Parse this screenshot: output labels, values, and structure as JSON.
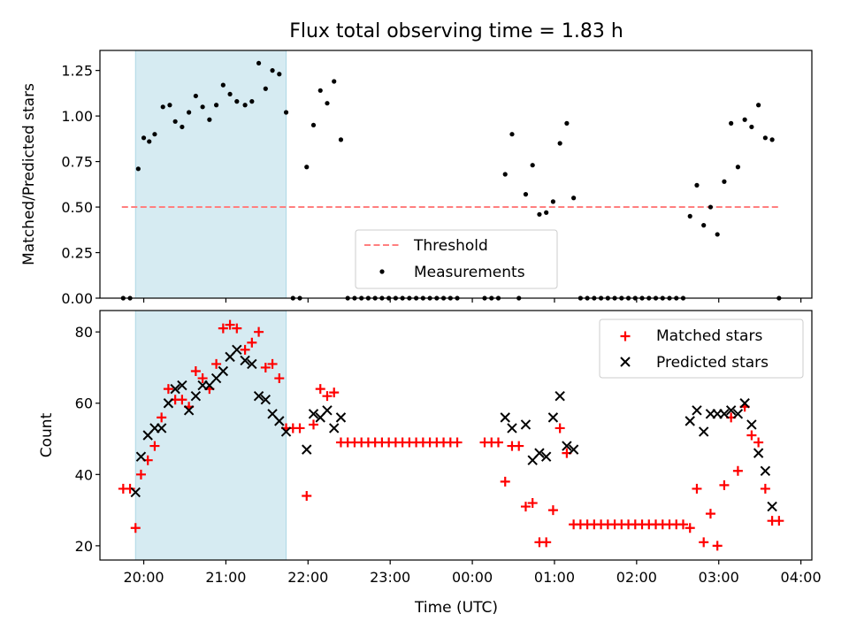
{
  "figure": {
    "title": "Flux total observing time = 1.83 h",
    "xlabel": "Time (UTC)",
    "x_ticks": [
      "20:00",
      "21:00",
      "22:00",
      "23:00",
      "00:00",
      "01:00",
      "02:00",
      "03:00",
      "04:00"
    ],
    "shaded_span": {
      "start": "19:54",
      "end": "21:44",
      "color": "#add8e6"
    }
  },
  "chart_data": [
    {
      "type": "scatter",
      "panel": "top",
      "title": "Flux total observing time = 1.83 h",
      "ylabel": "Matched/Predicted stars",
      "xlim": [
        "19:28",
        "04:08"
      ],
      "ylim": [
        0,
        1.36
      ],
      "y_ticks": [
        "0.00",
        "0.25",
        "0.50",
        "0.75",
        "1.00",
        "1.25"
      ],
      "legend_position": "lower-center",
      "series": [
        {
          "name": "Threshold",
          "style": "dashed-line",
          "color": "#ff7f7f",
          "points": [
            [
              "19:44",
              0.5
            ],
            [
              "03:44",
              0.5
            ]
          ]
        },
        {
          "name": "Measurements",
          "style": "dot",
          "color": "#000000",
          "points": [
            [
              "19:45",
              0
            ],
            [
              "19:50",
              0
            ],
            [
              "19:56",
              0.71
            ],
            [
              "20:00",
              0.88
            ],
            [
              "20:04",
              0.86
            ],
            [
              "20:08",
              0.9
            ],
            [
              "20:14",
              1.05
            ],
            [
              "20:19",
              1.06
            ],
            [
              "20:23",
              0.97
            ],
            [
              "20:28",
              0.94
            ],
            [
              "20:33",
              1.02
            ],
            [
              "20:38",
              1.11
            ],
            [
              "20:43",
              1.05
            ],
            [
              "20:48",
              0.98
            ],
            [
              "20:53",
              1.06
            ],
            [
              "20:58",
              1.17
            ],
            [
              "21:03",
              1.12
            ],
            [
              "21:08",
              1.08
            ],
            [
              "21:14",
              1.06
            ],
            [
              "21:19",
              1.08
            ],
            [
              "21:24",
              1.29
            ],
            [
              "21:29",
              1.15
            ],
            [
              "21:34",
              1.25
            ],
            [
              "21:39",
              1.23
            ],
            [
              "21:44",
              1.02
            ],
            [
              "21:49",
              0
            ],
            [
              "21:54",
              0
            ],
            [
              "21:59",
              0.72
            ],
            [
              "22:04",
              0.95
            ],
            [
              "22:09",
              1.14
            ],
            [
              "22:14",
              1.07
            ],
            [
              "22:19",
              1.19
            ],
            [
              "22:24",
              0.87
            ],
            [
              "22:29",
              0
            ],
            [
              "22:34",
              0
            ],
            [
              "22:39",
              0
            ],
            [
              "22:44",
              0
            ],
            [
              "22:49",
              0
            ],
            [
              "22:54",
              0
            ],
            [
              "22:59",
              0
            ],
            [
              "23:04",
              0
            ],
            [
              "23:09",
              0
            ],
            [
              "23:14",
              0
            ],
            [
              "23:19",
              0
            ],
            [
              "23:24",
              0
            ],
            [
              "23:29",
              0
            ],
            [
              "23:34",
              0
            ],
            [
              "23:39",
              0
            ],
            [
              "23:44",
              0
            ],
            [
              "23:49",
              0
            ],
            [
              "00:09",
              0
            ],
            [
              "00:14",
              0
            ],
            [
              "00:19",
              0
            ],
            [
              "00:24",
              0.68
            ],
            [
              "00:29",
              0.9
            ],
            [
              "00:34",
              0
            ],
            [
              "00:39",
              0.57
            ],
            [
              "00:44",
              0.73
            ],
            [
              "00:49",
              0.46
            ],
            [
              "00:54",
              0.47
            ],
            [
              "00:59",
              0.53
            ],
            [
              "01:04",
              0.85
            ],
            [
              "01:09",
              0.96
            ],
            [
              "01:14",
              0.55
            ],
            [
              "01:19",
              0
            ],
            [
              "01:24",
              0
            ],
            [
              "01:29",
              0
            ],
            [
              "01:34",
              0
            ],
            [
              "01:39",
              0
            ],
            [
              "01:44",
              0
            ],
            [
              "01:49",
              0
            ],
            [
              "01:54",
              0
            ],
            [
              "01:59",
              0
            ],
            [
              "02:04",
              0
            ],
            [
              "02:09",
              0
            ],
            [
              "02:14",
              0
            ],
            [
              "02:19",
              0
            ],
            [
              "02:24",
              0
            ],
            [
              "02:29",
              0
            ],
            [
              "02:34",
              0
            ],
            [
              "02:39",
              0.45
            ],
            [
              "02:44",
              0.62
            ],
            [
              "02:49",
              0.4
            ],
            [
              "02:54",
              0.5
            ],
            [
              "02:59",
              0.35
            ],
            [
              "03:04",
              0.64
            ],
            [
              "03:09",
              0.96
            ],
            [
              "03:14",
              0.72
            ],
            [
              "03:19",
              0.98
            ],
            [
              "03:24",
              0.94
            ],
            [
              "03:29",
              1.06
            ],
            [
              "03:34",
              0.88
            ],
            [
              "03:39",
              0.87
            ],
            [
              "03:44",
              0
            ]
          ]
        }
      ]
    },
    {
      "type": "scatter",
      "panel": "bottom",
      "ylabel": "Count",
      "xlabel": "Time (UTC)",
      "xlim": [
        "19:28",
        "04:08"
      ],
      "ylim": [
        16,
        86
      ],
      "y_ticks": [
        "20",
        "40",
        "60",
        "80"
      ],
      "legend_position": "upper-right",
      "series": [
        {
          "name": "Matched stars",
          "marker": "+",
          "color": "#ff0000",
          "points": [
            [
              "19:45",
              36
            ],
            [
              "19:50",
              36
            ],
            [
              "19:54",
              25
            ],
            [
              "19:58",
              40
            ],
            [
              "20:03",
              44
            ],
            [
              "20:08",
              48
            ],
            [
              "20:13",
              56
            ],
            [
              "20:18",
              64
            ],
            [
              "20:23",
              61
            ],
            [
              "20:28",
              61
            ],
            [
              "20:33",
              59
            ],
            [
              "20:38",
              69
            ],
            [
              "20:43",
              67
            ],
            [
              "20:48",
              64
            ],
            [
              "20:53",
              71
            ],
            [
              "20:58",
              81
            ],
            [
              "21:03",
              82
            ],
            [
              "21:08",
              81
            ],
            [
              "21:14",
              75
            ],
            [
              "21:19",
              77
            ],
            [
              "21:24",
              80
            ],
            [
              "21:29",
              70
            ],
            [
              "21:34",
              71
            ],
            [
              "21:39",
              67
            ],
            [
              "21:44",
              53
            ],
            [
              "21:49",
              53
            ],
            [
              "21:54",
              53
            ],
            [
              "21:59",
              34
            ],
            [
              "22:04",
              54
            ],
            [
              "22:09",
              64
            ],
            [
              "22:14",
              62
            ],
            [
              "22:19",
              63
            ],
            [
              "22:24",
              49
            ],
            [
              "22:29",
              49
            ],
            [
              "22:34",
              49
            ],
            [
              "22:39",
              49
            ],
            [
              "22:44",
              49
            ],
            [
              "22:49",
              49
            ],
            [
              "22:54",
              49
            ],
            [
              "22:59",
              49
            ],
            [
              "23:04",
              49
            ],
            [
              "23:09",
              49
            ],
            [
              "23:14",
              49
            ],
            [
              "23:19",
              49
            ],
            [
              "23:24",
              49
            ],
            [
              "23:29",
              49
            ],
            [
              "23:34",
              49
            ],
            [
              "23:39",
              49
            ],
            [
              "23:44",
              49
            ],
            [
              "23:49",
              49
            ],
            [
              "00:09",
              49
            ],
            [
              "00:14",
              49
            ],
            [
              "00:19",
              49
            ],
            [
              "00:24",
              38
            ],
            [
              "00:29",
              48
            ],
            [
              "00:34",
              48
            ],
            [
              "00:39",
              31
            ],
            [
              "00:44",
              32
            ],
            [
              "00:49",
              21
            ],
            [
              "00:54",
              21
            ],
            [
              "00:59",
              30
            ],
            [
              "01:04",
              53
            ],
            [
              "01:09",
              46
            ],
            [
              "01:14",
              26
            ],
            [
              "01:19",
              26
            ],
            [
              "01:24",
              26
            ],
            [
              "01:29",
              26
            ],
            [
              "01:34",
              26
            ],
            [
              "01:39",
              26
            ],
            [
              "01:44",
              26
            ],
            [
              "01:49",
              26
            ],
            [
              "01:54",
              26
            ],
            [
              "01:59",
              26
            ],
            [
              "02:04",
              26
            ],
            [
              "02:09",
              26
            ],
            [
              "02:14",
              26
            ],
            [
              "02:19",
              26
            ],
            [
              "02:24",
              26
            ],
            [
              "02:29",
              26
            ],
            [
              "02:34",
              26
            ],
            [
              "02:39",
              25
            ],
            [
              "02:44",
              36
            ],
            [
              "02:49",
              21
            ],
            [
              "02:54",
              29
            ],
            [
              "02:59",
              20
            ],
            [
              "03:04",
              37
            ],
            [
              "03:09",
              56
            ],
            [
              "03:14",
              41
            ],
            [
              "03:19",
              59
            ],
            [
              "03:24",
              51
            ],
            [
              "03:29",
              49
            ],
            [
              "03:34",
              36
            ],
            [
              "03:39",
              27
            ],
            [
              "03:44",
              27
            ]
          ]
        },
        {
          "name": "Predicted stars",
          "marker": "x",
          "color": "#000000",
          "points": [
            [
              "19:54",
              35
            ],
            [
              "19:58",
              45
            ],
            [
              "20:03",
              51
            ],
            [
              "20:08",
              53
            ],
            [
              "20:13",
              53
            ],
            [
              "20:18",
              60
            ],
            [
              "20:23",
              64
            ],
            [
              "20:28",
              65
            ],
            [
              "20:33",
              58
            ],
            [
              "20:38",
              62
            ],
            [
              "20:43",
              65
            ],
            [
              "20:48",
              65
            ],
            [
              "20:53",
              67
            ],
            [
              "20:58",
              69
            ],
            [
              "21:03",
              73
            ],
            [
              "21:08",
              75
            ],
            [
              "21:14",
              72
            ],
            [
              "21:19",
              71
            ],
            [
              "21:24",
              62
            ],
            [
              "21:29",
              61
            ],
            [
              "21:34",
              57
            ],
            [
              "21:39",
              55
            ],
            [
              "21:44",
              52
            ],
            [
              "21:59",
              47
            ],
            [
              "22:04",
              57
            ],
            [
              "22:09",
              56
            ],
            [
              "22:14",
              58
            ],
            [
              "22:19",
              53
            ],
            [
              "22:24",
              56
            ],
            [
              "00:24",
              56
            ],
            [
              "00:29",
              53
            ],
            [
              "00:39",
              54
            ],
            [
              "00:44",
              44
            ],
            [
              "00:49",
              46
            ],
            [
              "00:54",
              45
            ],
            [
              "00:59",
              56
            ],
            [
              "01:04",
              62
            ],
            [
              "01:09",
              48
            ],
            [
              "01:14",
              47
            ],
            [
              "02:39",
              55
            ],
            [
              "02:44",
              58
            ],
            [
              "02:49",
              52
            ],
            [
              "02:54",
              57
            ],
            [
              "02:59",
              57
            ],
            [
              "03:04",
              57
            ],
            [
              "03:09",
              58
            ],
            [
              "03:14",
              57
            ],
            [
              "03:19",
              60
            ],
            [
              "03:24",
              54
            ],
            [
              "03:29",
              46
            ],
            [
              "03:34",
              41
            ],
            [
              "03:39",
              31
            ]
          ]
        }
      ]
    }
  ]
}
